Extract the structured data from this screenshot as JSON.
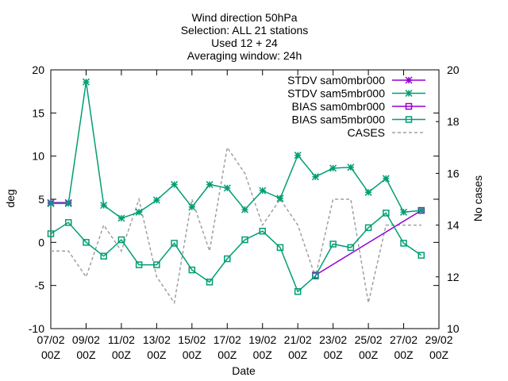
{
  "chart_data": {
    "type": "line",
    "title_lines": [
      "Wind direction 50hPa",
      "Selection: ALL     21 stations",
      "Used 12 + 24",
      "Averaging window: 24h"
    ],
    "xlabel": "Date",
    "ylabel": "deg",
    "y2label": "No cases",
    "x_range": [
      "2023-02-07T00",
      "2023-03-01T00"
    ],
    "ylim": [
      -10,
      20
    ],
    "y2lim": [
      10,
      20
    ],
    "yticks": [
      "-10",
      "-5",
      "0",
      "5",
      "10",
      "15",
      "20"
    ],
    "y2ticks": [
      "10",
      "12",
      "14",
      "16",
      "18",
      "20"
    ],
    "xticks": [
      {
        "date": "2023-02-07T00",
        "line1": "07/02",
        "line2": "00Z"
      },
      {
        "date": "2023-02-09T00",
        "line1": "09/02",
        "line2": "00Z"
      },
      {
        "date": "2023-02-11T00",
        "line1": "11/02",
        "line2": "00Z"
      },
      {
        "date": "2023-02-13T00",
        "line1": "13/02",
        "line2": "00Z"
      },
      {
        "date": "2023-02-15T00",
        "line1": "15/02",
        "line2": "00Z"
      },
      {
        "date": "2023-02-17T00",
        "line1": "17/02",
        "line2": "00Z"
      },
      {
        "date": "2023-02-19T00",
        "line1": "19/02",
        "line2": "00Z"
      },
      {
        "date": "2023-02-21T00",
        "line1": "21/02",
        "line2": "00Z"
      },
      {
        "date": "2023-02-23T00",
        "line1": "23/02",
        "line2": "00Z"
      },
      {
        "date": "2023-02-25T00",
        "line1": "25/02",
        "line2": "00Z"
      },
      {
        "date": "2023-02-27T00",
        "line1": "27/02",
        "line2": "00Z"
      },
      {
        "date": "2023-03-01T00",
        "line1": "29/02",
        "line2": "00Z"
      }
    ],
    "legend_position": "top-right",
    "grid": false,
    "series": [
      {
        "name": "STDV sam0mbr000",
        "color": "#9400d3",
        "marker": "star",
        "axis": "y1",
        "x": [
          "2023-02-07T00",
          "2023-02-08T00"
        ],
        "values": [
          4.6,
          4.6
        ]
      },
      {
        "name": "STDV sam5mbr000",
        "color": "#009e73",
        "marker": "star",
        "axis": "y1",
        "x": [
          "2023-02-07T00",
          "2023-02-08T00",
          "2023-02-09T00",
          "2023-02-10T00",
          "2023-02-11T00",
          "2023-02-12T00",
          "2023-02-13T00",
          "2023-02-14T00",
          "2023-02-15T00",
          "2023-02-16T00",
          "2023-02-17T00",
          "2023-02-18T00",
          "2023-02-19T00",
          "2023-02-20T00",
          "2023-02-21T00",
          "2023-02-22T00",
          "2023-02-23T00",
          "2023-02-24T00",
          "2023-02-25T00",
          "2023-02-26T00",
          "2023-02-27T00",
          "2023-02-28T00"
        ],
        "values": [
          4.5,
          4.5,
          18.6,
          4.3,
          2.8,
          3.5,
          4.9,
          6.7,
          4.1,
          6.7,
          6.3,
          3.8,
          6.0,
          5.1,
          10.1,
          7.6,
          8.6,
          8.7,
          5.8,
          7.4,
          3.5,
          3.7
        ]
      },
      {
        "name": "BIAS sam0mbr000",
        "color": "#9400d3",
        "marker": "square",
        "axis": "y1",
        "x": [
          "2023-02-22T00",
          "2023-02-28T00"
        ],
        "values": [
          -3.8,
          3.7
        ]
      },
      {
        "name": "BIAS sam5mbr000",
        "color": "#009e73",
        "marker": "square",
        "axis": "y1",
        "x": [
          "2023-02-07T00",
          "2023-02-08T00",
          "2023-02-09T00",
          "2023-02-10T00",
          "2023-02-11T00",
          "2023-02-12T00",
          "2023-02-13T00",
          "2023-02-14T00",
          "2023-02-15T00",
          "2023-02-16T00",
          "2023-02-17T00",
          "2023-02-18T00",
          "2023-02-19T00",
          "2023-02-20T00",
          "2023-02-21T00",
          "2023-02-22T00",
          "2023-02-23T00",
          "2023-02-24T00",
          "2023-02-25T00",
          "2023-02-26T00",
          "2023-02-27T00",
          "2023-02-28T00"
        ],
        "values": [
          1.0,
          2.3,
          0.0,
          -1.6,
          0.3,
          -2.6,
          -2.6,
          -0.1,
          -3.2,
          -4.6,
          -1.9,
          0.3,
          1.3,
          -0.6,
          -5.7,
          -3.9,
          -0.2,
          -0.6,
          1.7,
          3.4,
          -0.1,
          -1.5
        ]
      },
      {
        "name": "CASES",
        "color": "#a0a0a0",
        "marker": "none",
        "dashed": true,
        "axis": "y2",
        "x": [
          "2023-02-07T00",
          "2023-02-08T00",
          "2023-02-09T00",
          "2023-02-10T00",
          "2023-02-11T00",
          "2023-02-12T00",
          "2023-02-13T00",
          "2023-02-14T00",
          "2023-02-15T00",
          "2023-02-16T00",
          "2023-02-17T00",
          "2023-02-18T00",
          "2023-02-19T00",
          "2023-02-20T00",
          "2023-02-21T00",
          "2023-02-22T00",
          "2023-02-23T00",
          "2023-02-24T00",
          "2023-02-25T00",
          "2023-02-26T00",
          "2023-02-27T00",
          "2023-02-28T00"
        ],
        "values": [
          13,
          13,
          12,
          14,
          13,
          15,
          12,
          11,
          15,
          13,
          17,
          16,
          14,
          15,
          14,
          12,
          15,
          15,
          11,
          14,
          14,
          14
        ]
      }
    ]
  }
}
